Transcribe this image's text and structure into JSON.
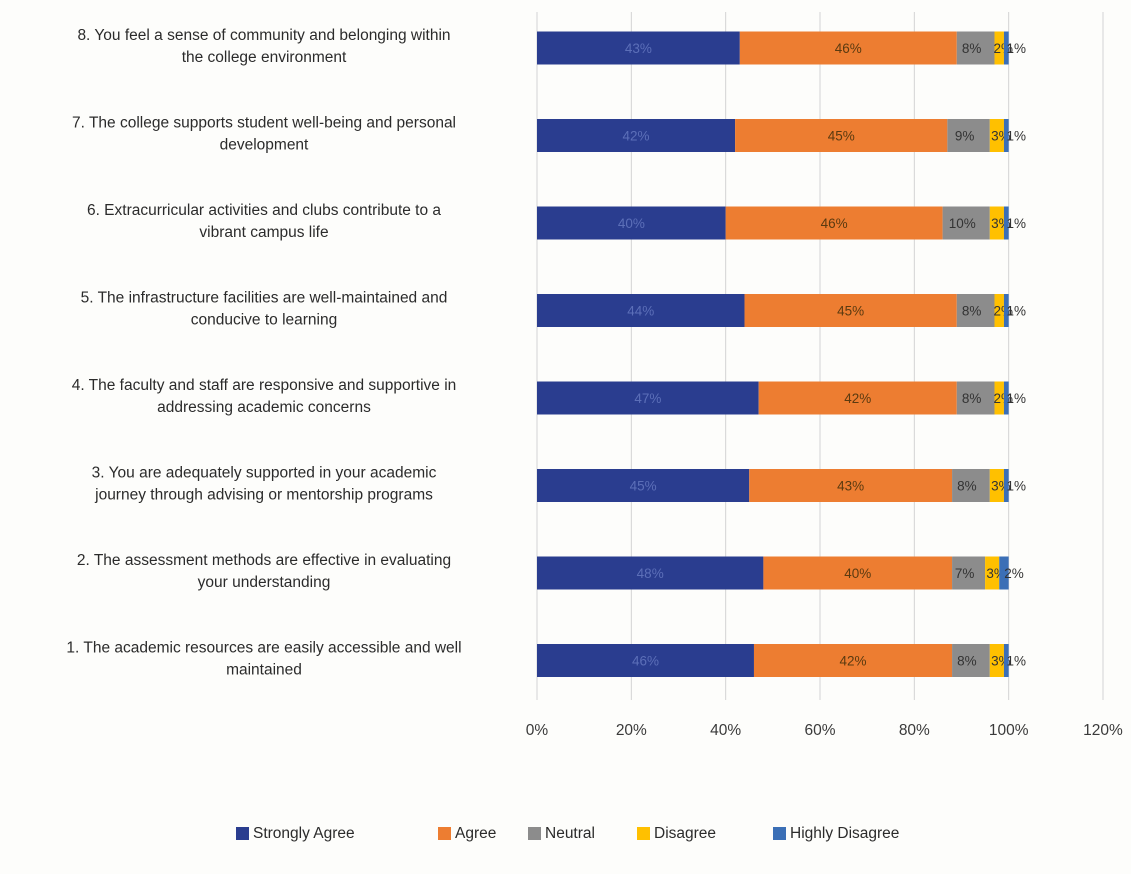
{
  "chart_data": {
    "type": "bar",
    "orientation": "horizontal",
    "stacked": true,
    "categories": [
      "8. You feel a sense of community and belonging within the college environment",
      "7. The college supports student well-being and personal development",
      "6. Extracurricular activities and clubs contribute to a vibrant campus life",
      "5. The infrastructure facilities are well-maintained and conducive to learning",
      "4. The faculty and staff are responsive and supportive in addressing academic concerns",
      "3. You are adequately supported in your academic journey through advising or mentorship programs",
      "2. The assessment methods are effective in evaluating your understanding",
      "1. The academic resources are easily accessible and well maintained"
    ],
    "category_lines": [
      [
        "8. You feel a sense of community and belonging within",
        "the college environment"
      ],
      [
        "7. The college supports student well-being and personal",
        "development"
      ],
      [
        "6. Extracurricular activities and clubs contribute to a",
        "vibrant campus life"
      ],
      [
        "5. The infrastructure facilities are well-maintained and",
        "conducive to learning"
      ],
      [
        "4. The faculty and staff are responsive and supportive in",
        "addressing academic concerns"
      ],
      [
        "3. You are adequately supported in your academic",
        "journey through advising or mentorship programs"
      ],
      [
        "2. The assessment methods are effective in evaluating",
        "your understanding"
      ],
      [
        "1. The academic resources are easily accessible and well",
        "maintained"
      ]
    ],
    "series": [
      {
        "name": "Strongly Agree",
        "color": "#2a3d8f",
        "values": [
          43,
          42,
          40,
          44,
          47,
          45,
          48,
          46
        ]
      },
      {
        "name": "Agree",
        "color": "#ed7d31",
        "values": [
          46,
          45,
          46,
          45,
          42,
          43,
          40,
          42
        ]
      },
      {
        "name": "Neutral",
        "color": "#8c8c8c",
        "values": [
          8,
          9,
          10,
          8,
          8,
          8,
          7,
          8
        ]
      },
      {
        "name": "Disagree",
        "color": "#ffc000",
        "values": [
          2,
          3,
          3,
          2,
          2,
          3,
          3,
          3
        ]
      },
      {
        "name": "Highly Disagree",
        "color": "#3b6fb6",
        "values": [
          1,
          1,
          1,
          1,
          1,
          1,
          2,
          1
        ]
      }
    ],
    "data_label_suffix": "%",
    "xlim": [
      0,
      120
    ],
    "xticks": [
      "0%",
      "20%",
      "40%",
      "60%",
      "80%",
      "100%",
      "120%"
    ],
    "title": "",
    "xlabel": "",
    "ylabel": "",
    "grid": "vertical",
    "legend_position": "bottom"
  }
}
